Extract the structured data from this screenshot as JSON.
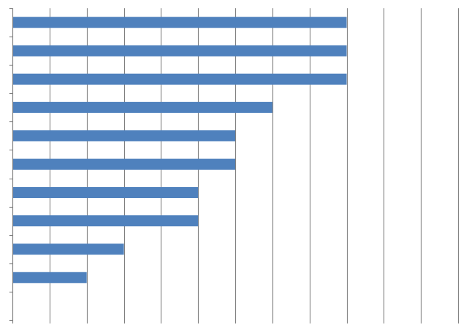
{
  "chart_data": {
    "type": "bar",
    "orientation": "horizontal",
    "title": "",
    "xlabel": "",
    "ylabel": "",
    "xlim": [
      0,
      12
    ],
    "grid": "vertical",
    "legend": "none",
    "values": [
      9,
      9,
      9,
      7,
      6,
      6,
      5,
      5,
      3,
      2
    ],
    "slots": 11,
    "colors": {
      "bar": "#4f81bd",
      "grid": "#7f7f7f",
      "axis": "#7f7f7f"
    }
  }
}
